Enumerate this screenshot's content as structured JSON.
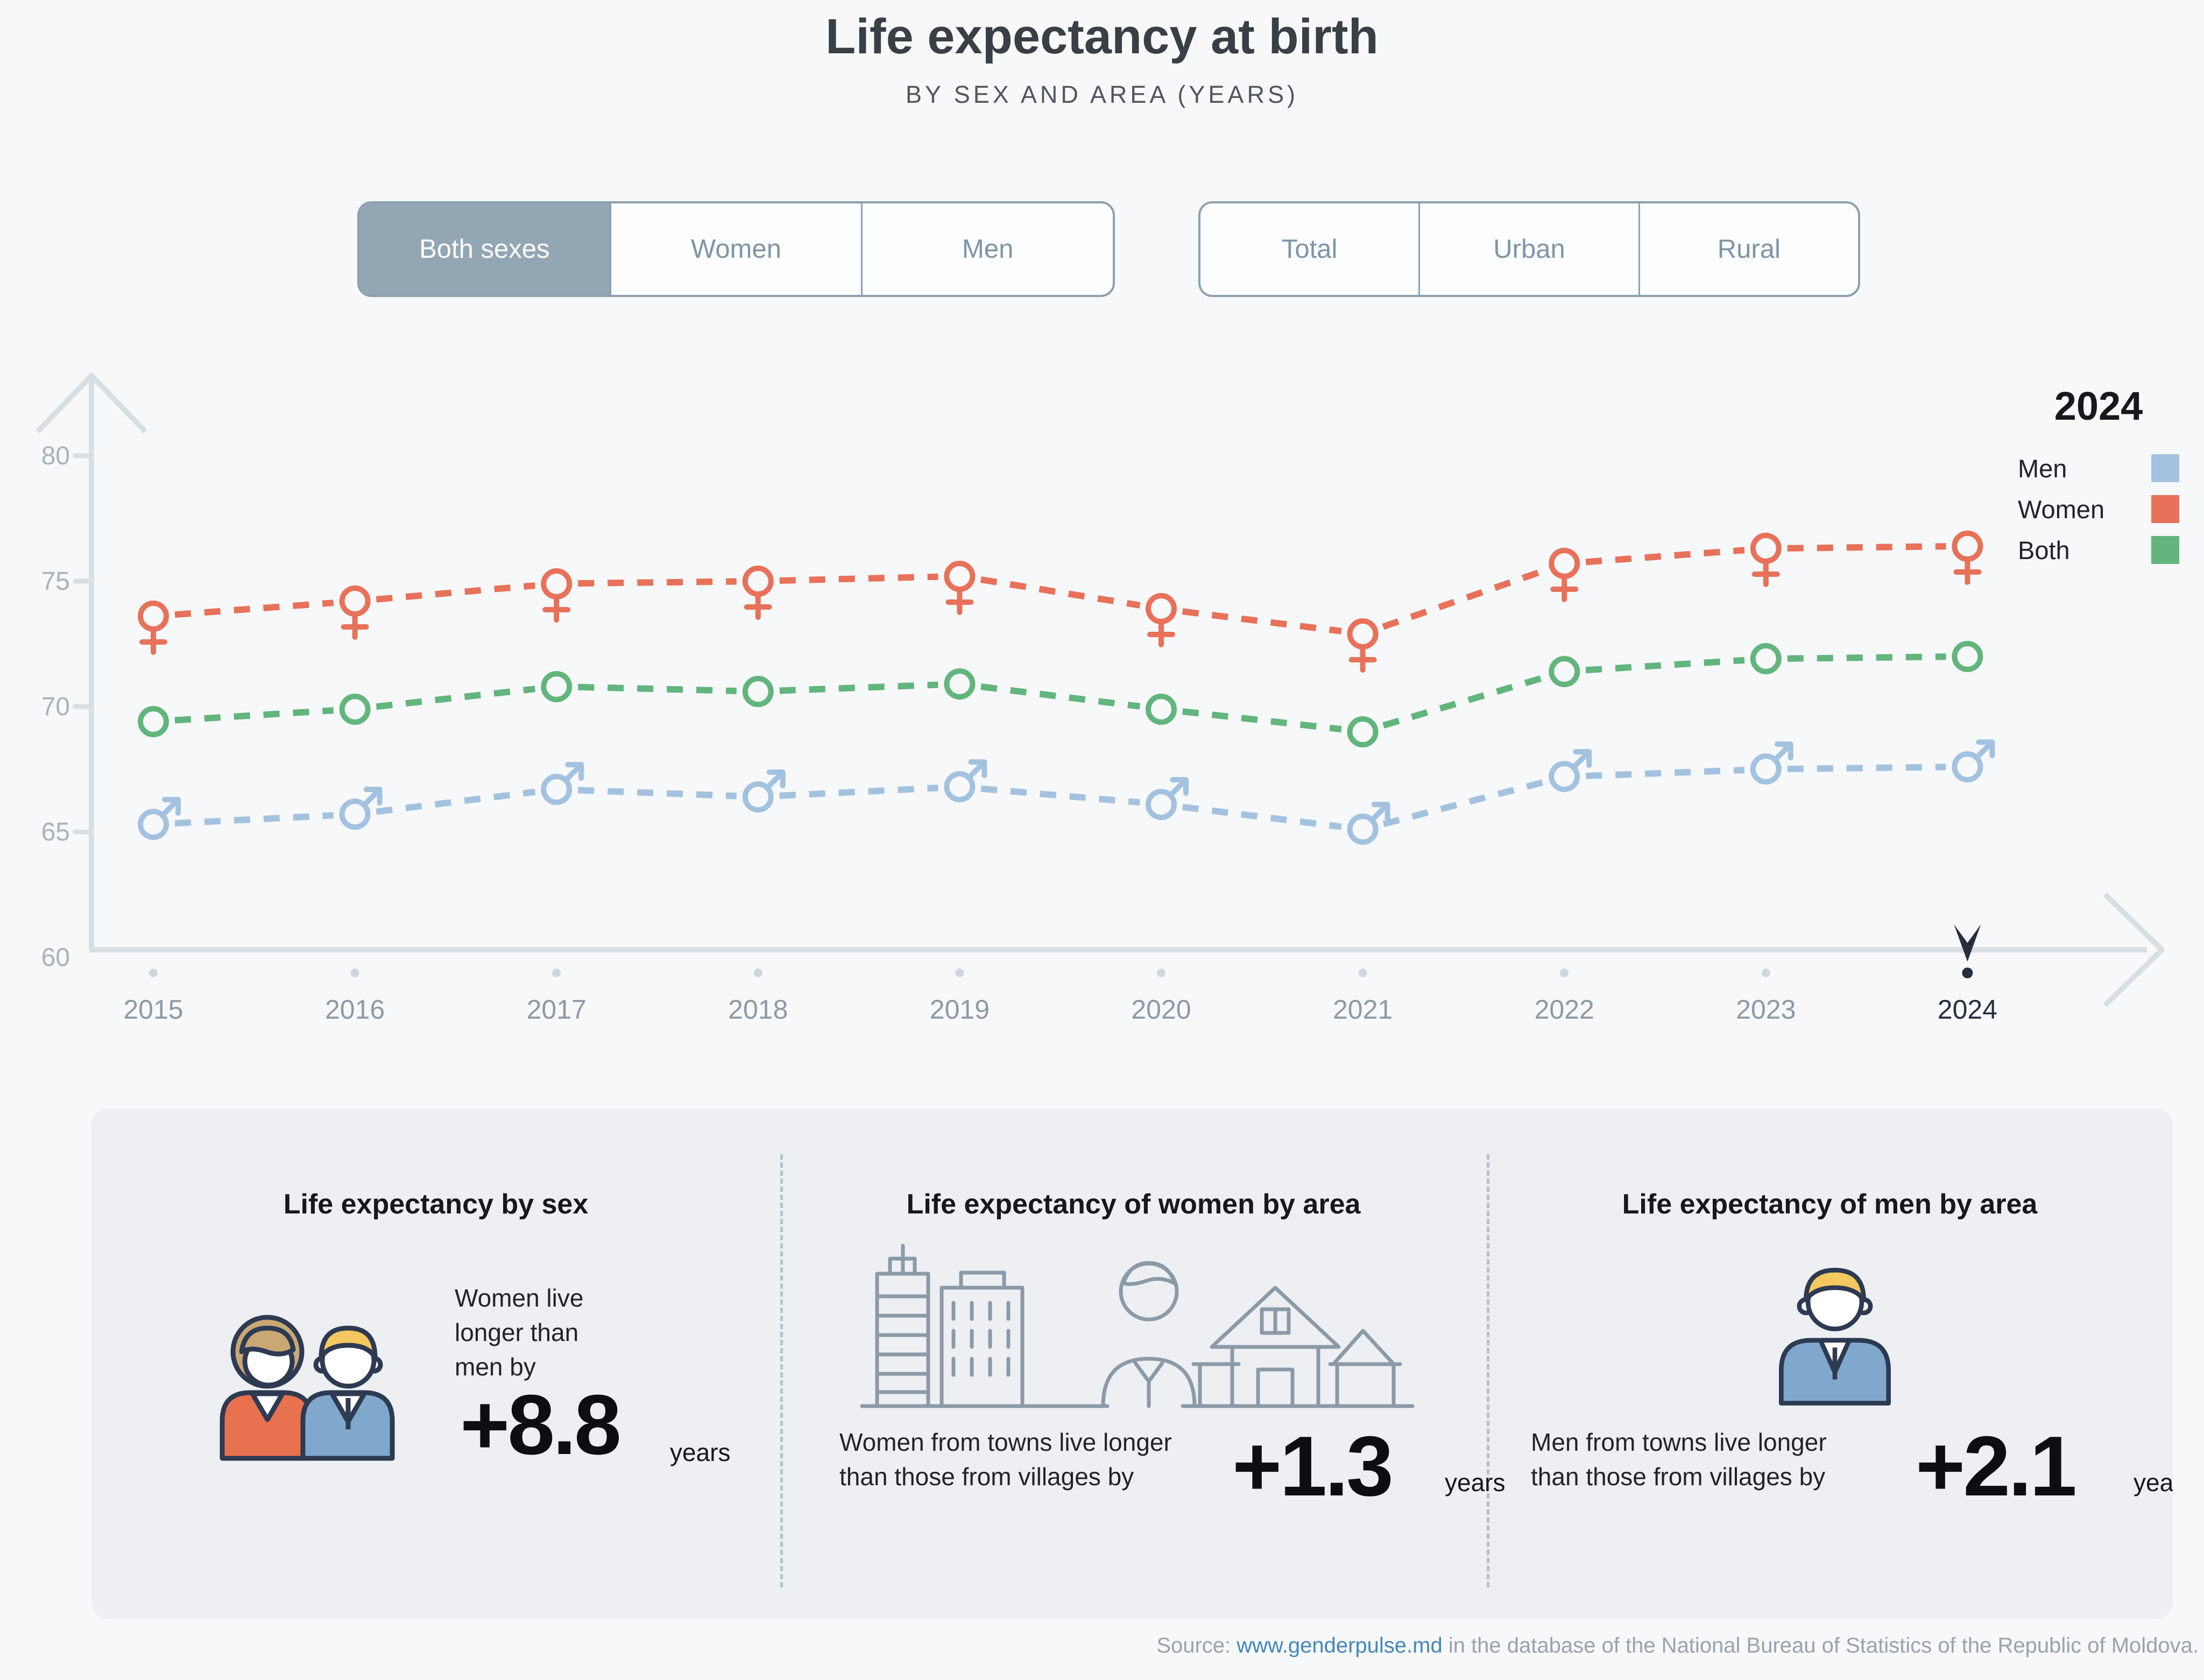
{
  "title": "Life expectancy at birth",
  "subtitle": "BY SEX AND AREA (YEARS)",
  "controls": {
    "sex_tabs": [
      {
        "label": "Both sexes",
        "selected": true
      },
      {
        "label": "Women",
        "selected": false
      },
      {
        "label": "Men",
        "selected": false
      }
    ],
    "area_tabs": [
      {
        "label": "Total",
        "selected": false
      },
      {
        "label": "Urban",
        "selected": false
      },
      {
        "label": "Rural",
        "selected": false
      }
    ]
  },
  "legend": {
    "year": "2024",
    "items": [
      {
        "label": "Men",
        "color": "#a3c2e0"
      },
      {
        "label": "Women",
        "color": "#e8715a"
      },
      {
        "label": "Both",
        "color": "#62b57c"
      }
    ]
  },
  "chart_data": {
    "type": "line",
    "title": "Life expectancy at birth by sex, Moldova",
    "x": [
      2015,
      2016,
      2017,
      2018,
      2019,
      2020,
      2021,
      2022,
      2023,
      2024
    ],
    "series": [
      {
        "name": "Women",
        "marker": "female",
        "color": "#e8715a",
        "values": [
          73.6,
          74.2,
          74.9,
          75.0,
          75.2,
          73.9,
          72.9,
          75.7,
          76.3,
          76.4
        ]
      },
      {
        "name": "Both",
        "marker": "circle",
        "color": "#62b57c",
        "values": [
          69.4,
          69.9,
          70.8,
          70.6,
          70.9,
          69.9,
          69.0,
          71.4,
          71.9,
          72.0
        ]
      },
      {
        "name": "Men",
        "marker": "male",
        "color": "#a3c2e0",
        "values": [
          65.3,
          65.7,
          66.7,
          66.4,
          66.8,
          66.1,
          65.1,
          67.2,
          67.5,
          67.6
        ]
      }
    ],
    "ylim": [
      60,
      81
    ],
    "yticks": [
      60,
      65,
      70,
      75,
      80
    ],
    "highlighted_year": 2024,
    "grid": false,
    "line_style": "dashed",
    "legend_position": "top-right"
  },
  "cards": [
    {
      "title": "Life expectancy by sex",
      "text": "Women live\nlonger than\nmen by",
      "value": "+8.8",
      "unit": "years"
    },
    {
      "title": "Life expectancy of women by area",
      "text": "Women from towns live longer\nthan those from villages by",
      "value": "+1.3",
      "unit": "years"
    },
    {
      "title": "Life expectancy of men by area",
      "text": "Men from towns live longer\nthan those from villages by",
      "value": "+2.1",
      "unit": "years"
    }
  ],
  "source": {
    "prefix": "Source: ",
    "link_text": "www.genderpulse.md",
    "suffix": " in the database of the National Bureau of Statistics of the Republic of Moldova."
  }
}
